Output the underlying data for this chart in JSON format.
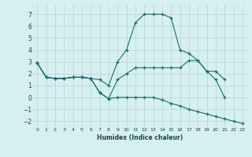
{
  "xlabel": "Humidex (Indice chaleur)",
  "background_color": "#d6f0f0",
  "grid_color": "#c0d8d8",
  "line_color": "#1a6b6b",
  "xlim": [
    -0.5,
    23.5
  ],
  "ylim": [
    -2.5,
    7.8
  ],
  "xticks": [
    0,
    1,
    2,
    3,
    4,
    5,
    6,
    7,
    8,
    9,
    10,
    11,
    12,
    13,
    14,
    15,
    16,
    17,
    18,
    19,
    20,
    21,
    22,
    23
  ],
  "yticks": [
    -2,
    -1,
    0,
    1,
    2,
    3,
    4,
    5,
    6,
    7
  ],
  "series": [
    {
      "x": [
        0,
        1,
        2,
        3,
        4,
        5,
        6,
        7,
        8,
        9,
        10,
        11,
        12,
        13,
        14,
        15,
        16,
        17,
        18,
        19,
        20,
        21
      ],
      "y": [
        2.9,
        1.7,
        1.6,
        1.6,
        1.7,
        1.7,
        1.6,
        1.5,
        1.0,
        3.0,
        4.0,
        6.3,
        7.0,
        7.0,
        7.0,
        6.7,
        4.0,
        3.7,
        3.1,
        2.2,
        1.5,
        0.0
      ]
    },
    {
      "x": [
        0,
        1,
        2,
        3,
        4,
        5,
        6,
        7,
        8,
        9,
        10,
        11,
        12,
        13,
        14,
        15,
        16,
        17,
        18,
        19,
        20,
        21
      ],
      "y": [
        2.9,
        1.7,
        1.6,
        1.6,
        1.7,
        1.7,
        1.6,
        0.4,
        -0.1,
        1.5,
        2.0,
        2.5,
        2.5,
        2.5,
        2.5,
        2.5,
        2.5,
        3.1,
        3.1,
        2.2,
        2.2,
        1.5
      ]
    },
    {
      "x": [
        0,
        1,
        2,
        3,
        4,
        5,
        6,
        7,
        8,
        9,
        10,
        11,
        12,
        13,
        14,
        15,
        16,
        17,
        18,
        19,
        20,
        21,
        22,
        23
      ],
      "y": [
        2.9,
        1.7,
        1.6,
        1.6,
        1.7,
        1.7,
        1.6,
        0.4,
        -0.1,
        0.0,
        0.0,
        0.0,
        0.0,
        0.0,
        -0.2,
        -0.5,
        -0.7,
        -1.0,
        -1.2,
        -1.4,
        -1.6,
        -1.8,
        -2.0,
        -2.2
      ]
    }
  ]
}
